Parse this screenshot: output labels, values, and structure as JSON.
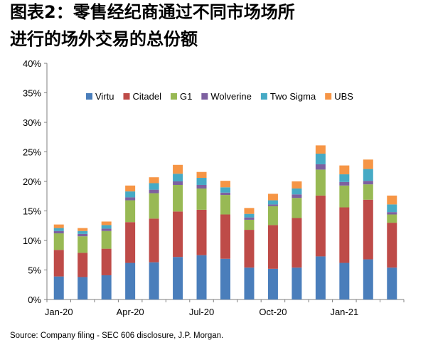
{
  "title": {
    "line1": "图表2：零售经纪商通过不同市场场所",
    "line2": "进行的场外交易的总份额"
  },
  "source": "Source: Company filing - SEC 606 disclosure, J.P. Morgan.",
  "chart_data": {
    "type": "bar",
    "stacked": true,
    "categories": [
      "Jan-20",
      "Feb-20",
      "Mar-20",
      "Apr-20",
      "May-20",
      "Jun-20",
      "Jul-20",
      "Aug-20",
      "Sep-20",
      "Oct-20",
      "Nov-20",
      "Dec-20",
      "Jan-21",
      "Feb-21",
      "Mar-21"
    ],
    "x_tick_labels": [
      "Jan-20",
      "Apr-20",
      "Jul-20",
      "Oct-20",
      "Jan-21"
    ],
    "x_tick_label_indices": [
      0,
      3,
      6,
      9,
      12
    ],
    "ylim": [
      0,
      40
    ],
    "y_tick_labels": [
      "0%",
      "5%",
      "10%",
      "15%",
      "20%",
      "25%",
      "30%",
      "35%",
      "40%"
    ],
    "grid": false,
    "legend_position": "top",
    "series": [
      {
        "name": "Virtu",
        "color": "#4a7ebb",
        "values": [
          3.9,
          3.8,
          4.1,
          6.2,
          6.3,
          7.2,
          7.5,
          6.9,
          5.4,
          5.2,
          5.4,
          7.3,
          6.2,
          6.8,
          5.4
        ]
      },
      {
        "name": "Citadel",
        "color": "#be4b48",
        "values": [
          4.5,
          4.1,
          4.5,
          6.9,
          7.4,
          7.7,
          7.7,
          7.5,
          6.4,
          7.4,
          8.4,
          10.3,
          9.4,
          10.1,
          7.6
        ]
      },
      {
        "name": "G1",
        "color": "#98b954",
        "values": [
          2.8,
          2.8,
          3.0,
          3.7,
          4.3,
          4.5,
          3.6,
          3.3,
          1.7,
          3.2,
          3.4,
          4.4,
          3.7,
          2.6,
          1.4
        ]
      },
      {
        "name": "Wolverine",
        "color": "#7d60a0",
        "values": [
          0.4,
          0.4,
          0.4,
          0.5,
          0.6,
          0.6,
          0.6,
          0.4,
          0.4,
          0.3,
          0.6,
          0.9,
          0.6,
          0.6,
          0.4
        ]
      },
      {
        "name": "Two Sigma",
        "color": "#46aac5",
        "values": [
          0.5,
          0.5,
          0.6,
          1.0,
          1.1,
          1.3,
          1.2,
          0.9,
          0.6,
          0.7,
          1.0,
          1.8,
          1.3,
          2.0,
          1.3
        ]
      },
      {
        "name": "UBS",
        "color": "#f69545",
        "values": [
          0.6,
          0.5,
          0.6,
          1.0,
          1.0,
          1.5,
          1.0,
          1.1,
          1.0,
          1.1,
          1.2,
          1.4,
          1.5,
          1.6,
          1.5
        ]
      }
    ]
  }
}
